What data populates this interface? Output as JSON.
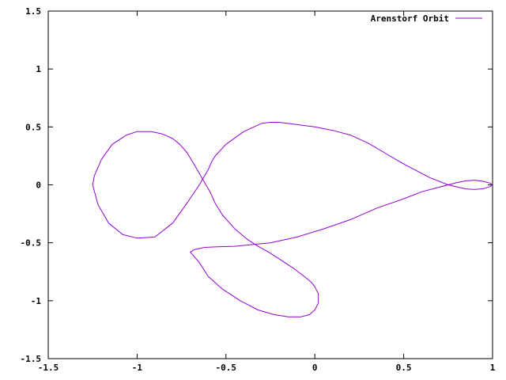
{
  "chart_data": {
    "type": "line",
    "title": "",
    "xlabel": "",
    "ylabel": "",
    "xlim": [
      -1.5,
      1
    ],
    "ylim": [
      -1.5,
      1.5
    ],
    "x_ticks": [
      {
        "value": -1.5,
        "label": "-1.5"
      },
      {
        "value": -1,
        "label": "-1"
      },
      {
        "value": -0.5,
        "label": "-0.5"
      },
      {
        "value": 0,
        "label": "0"
      },
      {
        "value": 0.5,
        "label": "0.5"
      },
      {
        "value": 1,
        "label": "1"
      }
    ],
    "y_ticks": [
      {
        "value": -1.5,
        "label": "-1.5"
      },
      {
        "value": -1,
        "label": "-1"
      },
      {
        "value": -0.5,
        "label": "-0.5"
      },
      {
        "value": 0,
        "label": "0"
      },
      {
        "value": 0.5,
        "label": "0.5"
      },
      {
        "value": 1,
        "label": "1"
      },
      {
        "value": 1.5,
        "label": "1.5"
      }
    ],
    "grid": false,
    "legend_position": "top-right",
    "series": [
      {
        "name": "Arenstorf Orbit",
        "color": "#9400d3",
        "x": [
          0.994,
          0.99,
          0.95,
          0.9,
          0.85,
          0.8,
          0.75,
          0.65,
          0.5,
          0.4,
          0.3,
          0.2,
          0.1,
          0.0,
          -0.1,
          -0.2,
          -0.25,
          -0.3,
          -0.4,
          -0.5,
          -0.56,
          -0.58,
          -0.6,
          -0.65,
          -0.72,
          -0.8,
          -0.9,
          -1.0,
          -1.08,
          -1.16,
          -1.22,
          -1.25,
          -1.24,
          -1.2,
          -1.14,
          -1.06,
          -1.0,
          -0.92,
          -0.86,
          -0.8,
          -0.76,
          -0.72,
          -0.68,
          -0.65,
          -0.62,
          -0.59,
          -0.56,
          -0.52,
          -0.45,
          -0.38,
          -0.32,
          -0.26,
          -0.19,
          -0.12,
          -0.06,
          -0.02,
          0.0,
          0.02,
          0.02,
          0.0,
          -0.03,
          -0.08,
          -0.15,
          -0.23,
          -0.32,
          -0.42,
          -0.52,
          -0.6,
          -0.65,
          -0.69,
          -0.7,
          -0.68,
          -0.62,
          -0.55,
          -0.45,
          -0.35,
          -0.25,
          -0.1,
          0.05,
          0.2,
          0.35,
          0.5,
          0.6,
          0.7,
          0.75,
          0.8,
          0.85,
          0.9,
          0.95,
          0.99,
          0.994
        ],
        "y": [
          0.0,
          -0.012,
          -0.032,
          -0.04,
          -0.035,
          -0.018,
          0.0,
          0.06,
          0.18,
          0.27,
          0.36,
          0.43,
          0.47,
          0.5,
          0.52,
          0.54,
          0.54,
          0.53,
          0.46,
          0.35,
          0.25,
          0.2,
          0.13,
          0.0,
          -0.16,
          -0.33,
          -0.45,
          -0.46,
          -0.43,
          -0.33,
          -0.17,
          0.0,
          0.08,
          0.22,
          0.35,
          0.43,
          0.46,
          0.46,
          0.44,
          0.4,
          0.35,
          0.28,
          0.18,
          0.1,
          0.02,
          -0.06,
          -0.16,
          -0.26,
          -0.38,
          -0.47,
          -0.53,
          -0.58,
          -0.65,
          -0.72,
          -0.79,
          -0.84,
          -0.88,
          -0.94,
          -1.02,
          -1.08,
          -1.12,
          -1.14,
          -1.14,
          -1.12,
          -1.08,
          -1.0,
          -0.9,
          -0.79,
          -0.67,
          -0.6,
          -0.58,
          -0.56,
          -0.54,
          -0.535,
          -0.53,
          -0.515,
          -0.5,
          -0.45,
          -0.38,
          -0.3,
          -0.2,
          -0.12,
          -0.06,
          -0.02,
          0.0,
          0.02,
          0.035,
          0.04,
          0.03,
          0.012,
          0.0
        ]
      }
    ]
  }
}
